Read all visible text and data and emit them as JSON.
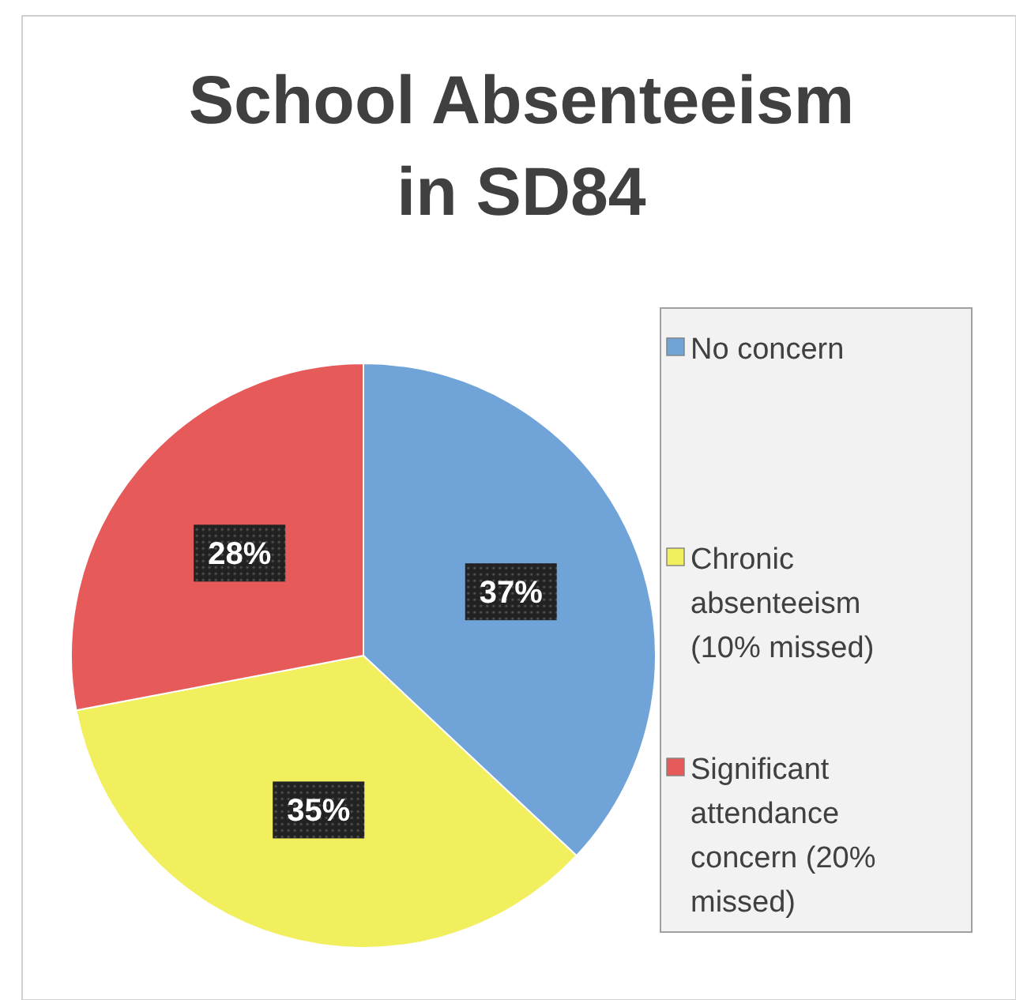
{
  "chart_data": {
    "type": "pie",
    "title": "School Absenteeism in SD84",
    "categories": [
      "No concern",
      "Chronic absenteeism (10% missed)",
      "Significant attendance concern (20% missed)"
    ],
    "values": [
      37,
      35,
      28
    ],
    "colors": [
      "#70a4d8",
      "#f2ef5f",
      "#e65a5a"
    ],
    "value_labels": [
      "37%",
      "35%",
      "28%"
    ],
    "legend": "right"
  }
}
